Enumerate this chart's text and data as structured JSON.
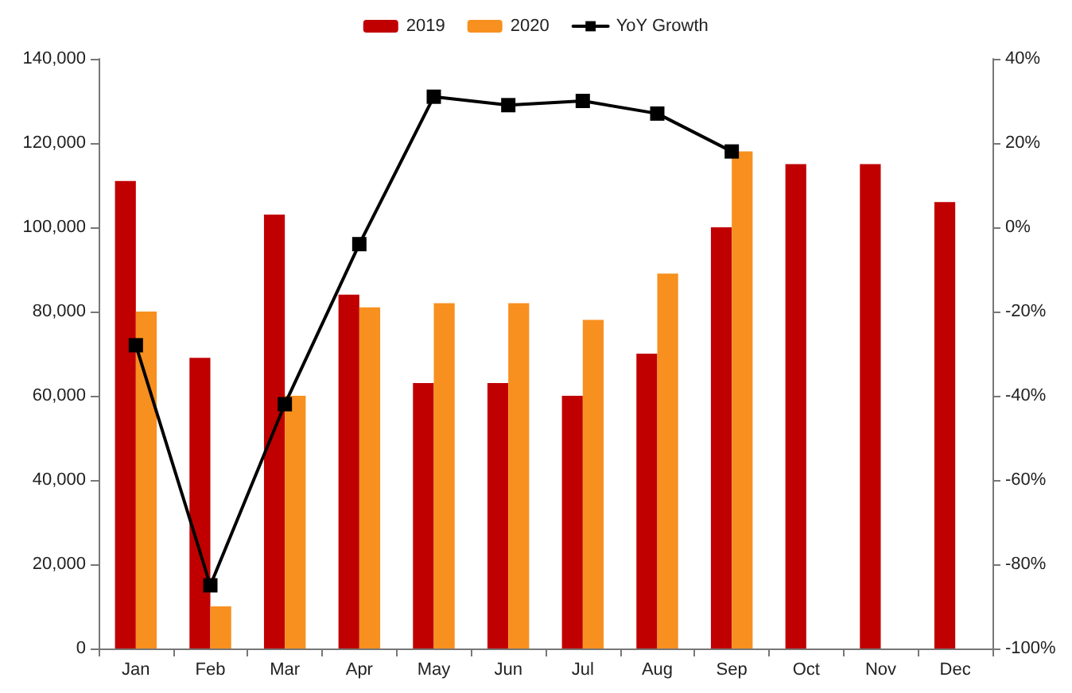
{
  "chart_data": {
    "type": "bar",
    "categories": [
      "Jan",
      "Feb",
      "Mar",
      "Apr",
      "May",
      "Jun",
      "Jul",
      "Aug",
      "Sep",
      "Oct",
      "Nov",
      "Dec"
    ],
    "series": [
      {
        "name": "2019",
        "color": "#c00000",
        "values": [
          111000,
          69000,
          103000,
          84000,
          63000,
          63000,
          60000,
          70000,
          100000,
          115000,
          115000,
          106000
        ]
      },
      {
        "name": "2020",
        "color": "#f7901e",
        "values": [
          80000,
          10000,
          60000,
          81000,
          82000,
          82000,
          78000,
          89000,
          118000,
          null,
          null,
          null
        ]
      },
      {
        "name": "YoY Growth",
        "type": "line",
        "axis": "y2",
        "color": "#000000",
        "marker": "square",
        "values": [
          -28,
          -85,
          -42,
          -4,
          31,
          29,
          30,
          27,
          18,
          null,
          null,
          null
        ]
      }
    ],
    "ylim": [
      0,
      140000
    ],
    "yticks": [
      0,
      {
        "value": 20000,
        "label": "20,000"
      },
      {
        "value": 40000,
        "label": "40,000"
      },
      {
        "value": 60000,
        "label": "60,000"
      },
      {
        "value": 80000,
        "label": "80,000"
      },
      {
        "value": 100000,
        "label": "100,000"
      },
      {
        "value": 120000,
        "label": "120,000"
      },
      {
        "value": 140000,
        "label": "140,000"
      }
    ],
    "y2lim": [
      -100,
      40
    ],
    "y2ticks": [
      {
        "value": -100,
        "label": "-100%"
      },
      {
        "value": -80,
        "label": "-80%"
      },
      {
        "value": -60,
        "label": "-60%"
      },
      {
        "value": -40,
        "label": "-40%"
      },
      {
        "value": -20,
        "label": "-20%"
      },
      {
        "value": 0,
        "label": "0%"
      },
      {
        "value": 20,
        "label": "20%"
      },
      {
        "value": 40,
        "label": "40%"
      }
    ],
    "grid": false,
    "legend": "top"
  }
}
